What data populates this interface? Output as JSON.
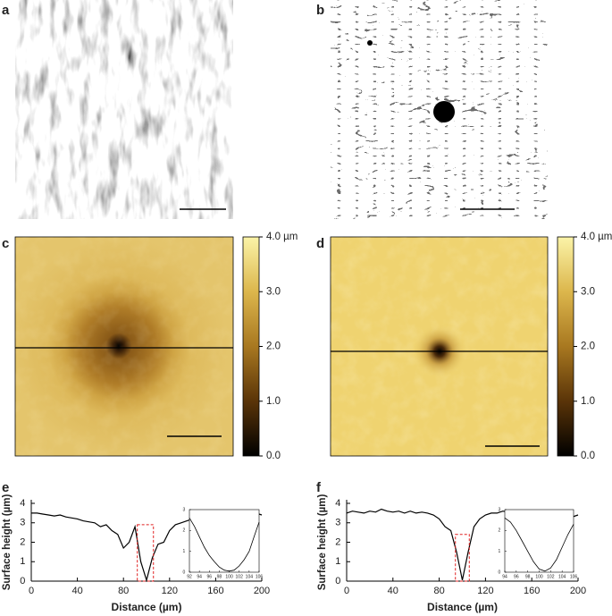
{
  "panel_labels": [
    "a",
    "b",
    "c",
    "d",
    "e",
    "f"
  ],
  "colorbars": [
    {
      "lim": [
        0,
        4
      ],
      "ticks": [
        {
          "value": 4,
          "label": "4.0 µm"
        },
        {
          "value": 3,
          "label": "3.0"
        },
        {
          "value": 2,
          "label": "2.0"
        },
        {
          "value": 1,
          "label": "1.0"
        },
        {
          "value": 0,
          "label": "0.0"
        }
      ]
    },
    {
      "lim": [
        0,
        4
      ],
      "ticks": [
        {
          "value": 4,
          "label": "4.0 µm"
        },
        {
          "value": 3,
          "label": "3.0"
        },
        {
          "value": 2,
          "label": "2.0"
        },
        {
          "value": 1,
          "label": "1.0"
        },
        {
          "value": 0,
          "label": "0.0"
        }
      ]
    }
  ],
  "chart_data": [
    {
      "type": "line",
      "x_label": "Distance (µm)",
      "y_label": "Surface height (µm)",
      "color": "#000000",
      "xlim": [
        0,
        200
      ],
      "ylim": [
        0,
        4
      ],
      "xticks": [
        0,
        40,
        80,
        120,
        160,
        200
      ],
      "yticks": [
        0,
        1,
        2,
        3,
        4
      ],
      "x": [
        0,
        5,
        10,
        15,
        20,
        25,
        30,
        35,
        40,
        45,
        50,
        55,
        60,
        65,
        70,
        75,
        80,
        85,
        90,
        95,
        100,
        105,
        110,
        115,
        120,
        125,
        130,
        135,
        140,
        145,
        150,
        155,
        160,
        165,
        170,
        175,
        180,
        185,
        190,
        195,
        200
      ],
      "values": [
        3.5,
        3.5,
        3.45,
        3.4,
        3.35,
        3.4,
        3.3,
        3.25,
        3.2,
        3.1,
        3.05,
        3.0,
        2.8,
        2.9,
        2.6,
        2.4,
        1.7,
        2.0,
        2.8,
        1.0,
        0.05,
        1.2,
        1.9,
        2.0,
        2.6,
        2.9,
        3.0,
        3.1,
        3.2,
        3.3,
        3.35,
        3.4,
        3.45,
        3.45,
        3.5,
        3.45,
        3.5,
        3.5,
        3.4,
        3.5,
        3.4
      ],
      "zoom_box": {
        "xlim": [
          92,
          106
        ],
        "ylim": [
          0,
          2.9
        ]
      },
      "inset": {
        "type": "line",
        "color": "#000000",
        "xlim": [
          92,
          106
        ],
        "ylim": [
          0,
          3
        ],
        "xticks": [
          92,
          94,
          96,
          98,
          100,
          102,
          104,
          106
        ],
        "yticks": [
          0,
          1,
          2,
          3
        ],
        "x": [
          92,
          93,
          94,
          95,
          96,
          97,
          98,
          99,
          100,
          101,
          102,
          103,
          104,
          105,
          106
        ],
        "values": [
          2.6,
          2.2,
          1.7,
          1.2,
          0.8,
          0.5,
          0.25,
          0.1,
          0.05,
          0.1,
          0.3,
          0.6,
          1.0,
          1.7,
          2.4
        ]
      }
    },
    {
      "type": "line",
      "x_label": "Distance (µm)",
      "y_label": "Surface height (µm)",
      "color": "#000000",
      "xlim": [
        0,
        200
      ],
      "ylim": [
        0,
        4
      ],
      "xticks": [
        0,
        40,
        80,
        120,
        160,
        200
      ],
      "yticks": [
        0,
        1,
        2,
        3,
        4
      ],
      "x": [
        0,
        5,
        10,
        15,
        20,
        25,
        30,
        35,
        40,
        45,
        50,
        55,
        60,
        65,
        70,
        75,
        80,
        85,
        90,
        95,
        100,
        105,
        110,
        115,
        120,
        125,
        130,
        135,
        140,
        145,
        150,
        155,
        160,
        165,
        170,
        175,
        180,
        185,
        190,
        195,
        200
      ],
      "values": [
        3.5,
        3.6,
        3.55,
        3.5,
        3.6,
        3.55,
        3.7,
        3.6,
        3.55,
        3.6,
        3.5,
        3.6,
        3.5,
        3.55,
        3.5,
        3.4,
        3.2,
        2.8,
        2.6,
        1.5,
        0.05,
        1.5,
        2.8,
        3.2,
        3.4,
        3.5,
        3.5,
        3.6,
        3.55,
        3.6,
        3.5,
        3.55,
        3.5,
        3.5,
        3.6,
        3.4,
        3.5,
        3.35,
        3.4,
        3.3,
        3.4
      ],
      "zoom_box": {
        "xlim": [
          94,
          106
        ],
        "ylim": [
          0,
          2.4
        ]
      },
      "inset": {
        "type": "line",
        "color": "#000000",
        "xlim": [
          94,
          106
        ],
        "ylim": [
          0,
          3
        ],
        "xticks": [
          94,
          96,
          98,
          100,
          102,
          104,
          106
        ],
        "yticks": [
          0,
          1,
          2,
          3
        ],
        "x": [
          94,
          95,
          96,
          97,
          98,
          99,
          100,
          101,
          102,
          103,
          104,
          105,
          106
        ],
        "values": [
          2.6,
          2.4,
          2.0,
          1.5,
          1.0,
          0.5,
          0.15,
          0.05,
          0.2,
          0.6,
          1.2,
          1.8,
          2.3
        ]
      }
    }
  ]
}
